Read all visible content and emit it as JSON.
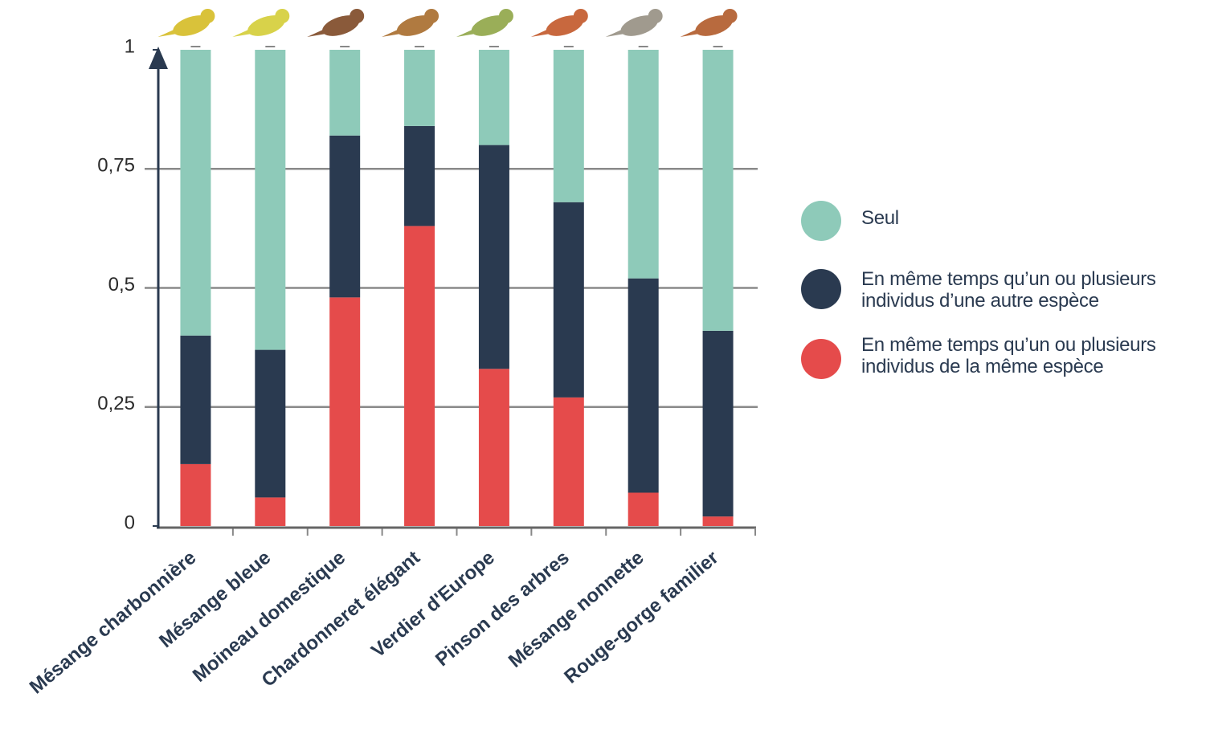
{
  "chart_data": {
    "type": "stacked_bar",
    "categories": [
      "Mésange charbonnière",
      "Mésange bleue",
      "Moineau domestique",
      "Chardonneret élégant",
      "Verdier d'Europe",
      "Pinson des arbres",
      "Mésange nonnette",
      "Rouge-gorge familier"
    ],
    "series": [
      {
        "name": "Seul",
        "color": "#8ecab9",
        "values": [
          0.6,
          0.63,
          0.18,
          0.16,
          0.2,
          0.32,
          0.48,
          0.59
        ]
      },
      {
        "name": "En même temps qu’un ou plusieurs individus d’une autre espèce",
        "color": "#2a3a50",
        "values": [
          0.27,
          0.31,
          0.34,
          0.21,
          0.47,
          0.41,
          0.45,
          0.39
        ]
      },
      {
        "name": "En même temps qu’un ou plusieurs individus de la même espèce",
        "color": "#e54b4b",
        "values": [
          0.13,
          0.06,
          0.48,
          0.63,
          0.33,
          0.27,
          0.07,
          0.02
        ]
      }
    ],
    "ylim": [
      0,
      1
    ],
    "yticks": [
      0,
      {
        "value": 0.25,
        "label": "0,25"
      },
      {
        "value": 0.5,
        "label": "0,5"
      },
      {
        "value": 0.75,
        "label": "0,75"
      },
      1
    ],
    "grid": true
  }
}
